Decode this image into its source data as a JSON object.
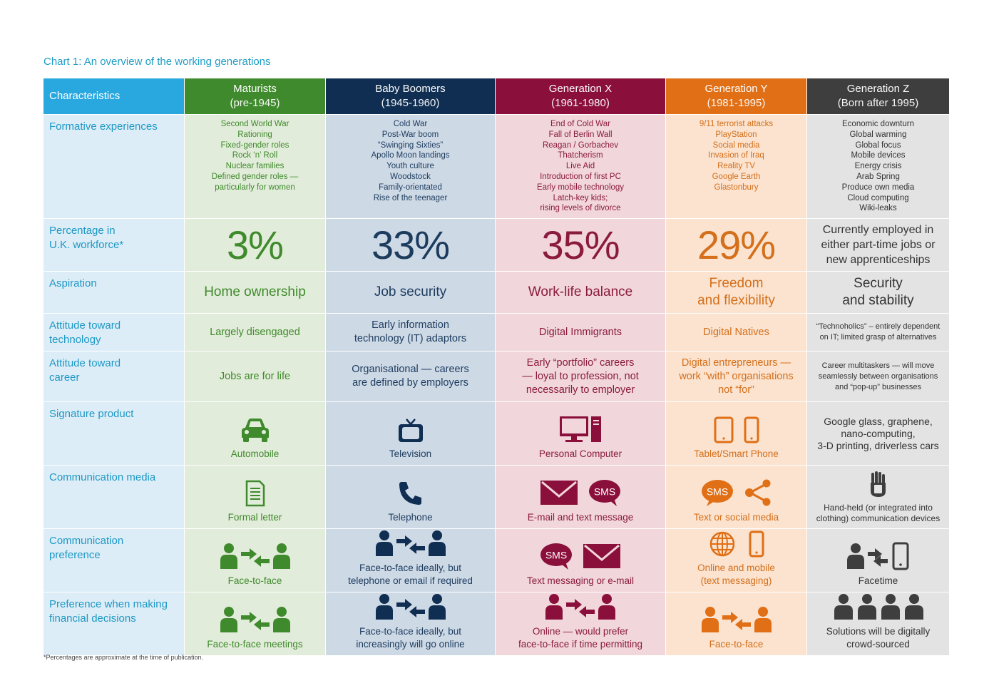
{
  "title": "Chart 1: An overview of the working generations",
  "footnote": "*Percentages are approximate at the time of publication.",
  "header": {
    "characteristics": "Characteristics",
    "columns": [
      {
        "name": "Maturists",
        "years": "(pre-1945)"
      },
      {
        "name": "Baby Boomers",
        "years": "(1945-1960)"
      },
      {
        "name": "Generation X",
        "years": "(1961-1980)"
      },
      {
        "name": "Generation Y",
        "years": "(1981-1995)"
      },
      {
        "name": "Generation Z",
        "years": "(Born after 1995)"
      }
    ]
  },
  "rows": {
    "formative": {
      "label": "Formative experiences",
      "maturists": [
        "Second World War",
        "Rationing",
        "Fixed-gender roles",
        "Rock ‘n’ Roll",
        "Nuclear families",
        "Defined gender roles —",
        "particularly for women"
      ],
      "boomers": [
        "Cold War",
        "Post-War boom",
        "“Swinging Sixties”",
        "Apollo Moon landings",
        "Youth culture",
        "Woodstock",
        "Family-orientated",
        "Rise of the teenager"
      ],
      "genx": [
        "End of Cold War",
        "Fall of Berlin Wall",
        "Reagan / Gorbachev",
        "Thatcherism",
        "Live Aid",
        "Introduction of first PC",
        "Early mobile technology",
        "Latch-key kids;",
        "rising levels of divorce"
      ],
      "geny": [
        "9/11 terrorist attacks",
        "PlayStation",
        "Social media",
        "Invasion of Iraq",
        "Reality TV",
        "Google Earth",
        "Glastonbury"
      ],
      "genz": [
        "Economic downturn",
        "Global warming",
        "Global focus",
        "Mobile devices",
        "Energy crisis",
        "Arab Spring",
        "Produce own media",
        "Cloud computing",
        "Wiki-leaks"
      ]
    },
    "percentage": {
      "label_line1": "Percentage in",
      "label_line2": "U.K. workforce*",
      "maturists": "3%",
      "boomers": "33%",
      "genx": "35%",
      "geny": "29%",
      "genz": [
        "Currently employed in",
        "either part-time jobs or",
        "new apprenticeships"
      ]
    },
    "aspiration": {
      "label": "Aspiration",
      "maturists": "Home ownership",
      "boomers": "Job security",
      "genx": "Work-life balance",
      "geny": [
        "Freedom",
        "and flexibility"
      ],
      "genz": [
        "Security",
        "and stability"
      ]
    },
    "technology": {
      "label_line1": "Attitude toward",
      "label_line2": "technology",
      "maturists": "Largely disengaged",
      "boomers": [
        "Early information",
        "technology (IT) adaptors"
      ],
      "genx": "Digital Immigrants",
      "geny": "Digital Natives",
      "genz": [
        "“Technoholics” – entirely dependent",
        "on IT; limited grasp of alternatives"
      ]
    },
    "career": {
      "label_line1": "Attitude toward",
      "label_line2": "career",
      "maturists": "Jobs are for life",
      "boomers": [
        "Organisational — careers",
        "are defined by employers"
      ],
      "genx": [
        "Early “portfolio” careers",
        "— loyal to profession, not",
        "necessarily to employer"
      ],
      "geny": [
        "Digital entrepreneurs —",
        "work “with” organisations",
        "not “for”"
      ],
      "genz": [
        "Career multitaskers — will move",
        "seamlessly between organisations",
        "and “pop-up” businesses"
      ]
    },
    "product": {
      "label": "Signature product",
      "maturists": "Automobile",
      "boomers": "Television",
      "genx": "Personal Computer",
      "geny": "Tablet/Smart Phone",
      "genz": [
        "Google glass, graphene,",
        "nano-computing,",
        "3-D printing, driverless cars"
      ]
    },
    "media": {
      "label": "Communication media",
      "maturists": "Formal letter",
      "boomers": "Telephone",
      "genx": "E-mail and text message",
      "geny": "Text or social media",
      "genz": [
        "Hand-held (or integrated into",
        "clothing) communication devices"
      ],
      "sms": "SMS"
    },
    "preference": {
      "label_line1": "Communication",
      "label_line2": "preference",
      "maturists": "Face-to-face",
      "boomers": [
        "Face-to-face ideally, but",
        "telephone or email if required"
      ],
      "genx": "Text messaging or e-mail",
      "geny": [
        "Online and mobile",
        "(text messaging)"
      ],
      "genz": "Facetime",
      "sms": "SMS"
    },
    "financial": {
      "label_line1": "Preference when making",
      "label_line2": "financial decisions",
      "maturists": "Face-to-face meetings",
      "boomers": [
        "Face-to-face ideally, but",
        "increasingly will go online"
      ],
      "genx": [
        "Online — would prefer",
        "face-to-face if time permitting"
      ],
      "geny": "Face-to-face",
      "genz": [
        "Solutions will be digitally",
        "crowd-sourced"
      ]
    }
  },
  "colors": {
    "maturists": "#3f8a2c",
    "boomers": "#0f2e52",
    "genx": "#8a0f3a",
    "geny": "#e06f16",
    "genz": "#3e3e3e",
    "label": "#29a8e0"
  },
  "icons": {
    "product": [
      "car-icon",
      "television-icon",
      "computer-icon",
      "tablet-phone-icon"
    ],
    "media": [
      "letter-icon",
      "telephone-icon",
      "email-icon",
      "sms-icon",
      "share-icon",
      "hand-device-icon"
    ],
    "preference": [
      "people-exchange-icon",
      "globe-icon",
      "mobile-phone-icon"
    ],
    "financial": [
      "people-exchange-icon",
      "crowd-icon"
    ]
  }
}
